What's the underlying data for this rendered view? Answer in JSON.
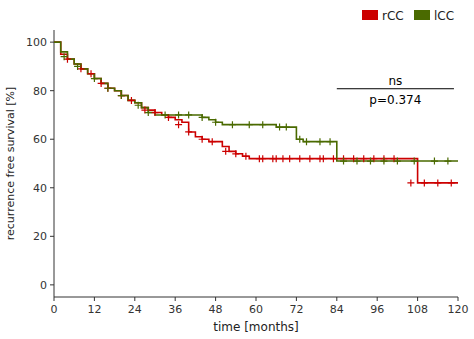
{
  "chart_data": {
    "type": "step",
    "xlabel": "time [months]",
    "ylabel": "recurrence free survival [%]",
    "xlim": [
      0,
      120
    ],
    "ylim": [
      -5,
      105
    ],
    "xticks": [
      0,
      12,
      24,
      36,
      48,
      60,
      72,
      84,
      96,
      108,
      120
    ],
    "yticks": [
      0,
      20,
      40,
      60,
      80,
      100
    ],
    "legend": "upper right",
    "annotations": [
      "ns",
      "p=0.374"
    ],
    "series": [
      {
        "name": "rCC",
        "type": "step",
        "color": "#cc0000",
        "x": [
          0,
          2,
          4,
          6,
          8,
          10,
          12,
          14,
          16,
          18,
          20,
          22,
          24,
          26,
          28,
          30,
          32,
          34,
          36,
          38,
          40,
          42,
          44,
          46,
          48,
          50,
          52,
          54,
          56,
          58,
          60,
          62,
          64,
          66,
          68,
          70,
          72,
          74,
          76,
          78,
          80,
          82,
          84,
          108,
          120
        ],
        "values": [
          100,
          95,
          93,
          91,
          89,
          87,
          85,
          83,
          81,
          80,
          78,
          76,
          75,
          73,
          72,
          71,
          70,
          69,
          68,
          67,
          63,
          61,
          60,
          59,
          59,
          57,
          55,
          54,
          53,
          52,
          52,
          52,
          52,
          52,
          52,
          52,
          52,
          52,
          52,
          52,
          52,
          52,
          52,
          42,
          42
        ]
      },
      {
        "name": "lCC",
        "type": "step",
        "color": "#4a6a00",
        "x": [
          0,
          2,
          4,
          6,
          8,
          10,
          12,
          14,
          16,
          18,
          20,
          22,
          24,
          26,
          28,
          30,
          32,
          34,
          36,
          38,
          40,
          42,
          44,
          46,
          48,
          50,
          52,
          54,
          56,
          58,
          60,
          62,
          64,
          66,
          68,
          70,
          72,
          74,
          76,
          78,
          80,
          82,
          84,
          86,
          88,
          90,
          92,
          94,
          96,
          98,
          100,
          102,
          104,
          106,
          108,
          110,
          112,
          114,
          116,
          118,
          120
        ],
        "values": [
          100,
          96,
          93,
          91,
          89,
          87,
          85,
          83,
          81,
          80,
          78,
          76,
          75,
          73,
          71,
          70,
          70,
          70,
          70,
          70,
          70,
          70,
          69,
          68,
          67,
          66,
          66,
          66,
          66,
          66,
          66,
          66,
          66,
          65,
          65,
          65,
          60,
          59,
          59,
          59,
          59,
          59,
          51,
          51,
          51,
          51,
          51,
          51,
          51,
          51,
          51,
          51,
          51,
          51,
          51,
          51,
          51,
          51,
          51,
          51,
          51
        ]
      },
      {
        "type": "scatter",
        "marker": "plus",
        "color": "#cc0000",
        "x": [
          4,
          8,
          11,
          14,
          16,
          20,
          23,
          27,
          30,
          34,
          37,
          40,
          44,
          47,
          51,
          54,
          57,
          61,
          62,
          65,
          66,
          68,
          70,
          73,
          76,
          79,
          80,
          83,
          86,
          89,
          92,
          95,
          98,
          101,
          106,
          110,
          114,
          118
        ],
        "values": [
          93,
          89,
          87,
          83,
          81,
          78,
          76,
          72,
          71,
          69,
          66,
          63,
          60,
          59,
          55,
          54,
          53,
          52,
          52,
          52,
          52,
          52,
          52,
          52,
          52,
          52,
          52,
          52,
          52,
          52,
          52,
          52,
          52,
          52,
          42,
          42,
          42,
          42
        ]
      },
      {
        "type": "scatter",
        "marker": "plus",
        "color": "#4a6a00",
        "x": [
          3,
          7,
          12,
          16,
          20,
          25,
          28,
          33,
          37,
          40,
          44,
          48,
          53,
          58,
          62,
          67,
          69,
          73,
          75,
          79,
          82,
          86,
          90,
          94,
          98,
          102,
          107,
          113,
          117
        ],
        "values": [
          94,
          90,
          85,
          81,
          78,
          74,
          71,
          70,
          70,
          70,
          69,
          67,
          66,
          66,
          66,
          65,
          65,
          60,
          59,
          59,
          59,
          51,
          51,
          51,
          51,
          51,
          51,
          51,
          51
        ]
      }
    ]
  }
}
